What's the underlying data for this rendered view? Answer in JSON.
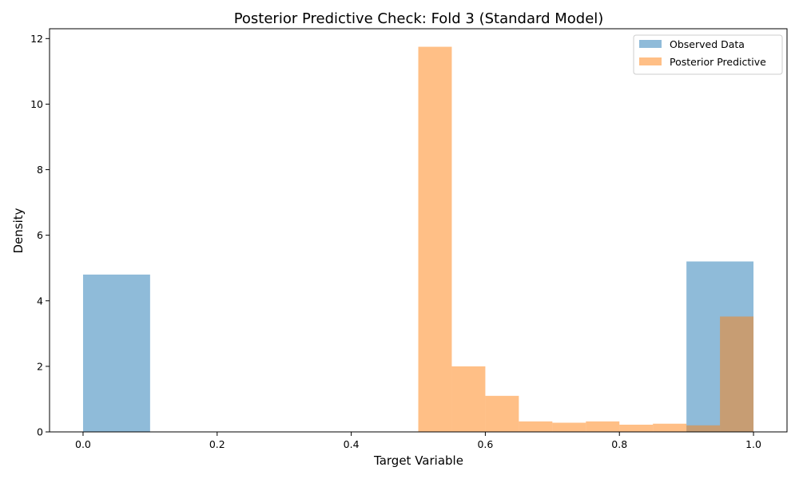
{
  "chart_data": {
    "type": "histogram",
    "title": "Posterior Predictive Check: Fold 3 (Standard Model)",
    "xlabel": "Target Variable",
    "ylabel": "Density",
    "xlim": [
      -0.05,
      1.05
    ],
    "ylim": [
      0,
      12.3
    ],
    "xticks": [
      0.0,
      0.2,
      0.4,
      0.6,
      0.8,
      1.0
    ],
    "xtick_labels": [
      "0.0",
      "0.2",
      "0.4",
      "0.6",
      "0.8",
      "1.0"
    ],
    "yticks": [
      0,
      2,
      4,
      6,
      8,
      10,
      12
    ],
    "ytick_labels": [
      "0",
      "2",
      "4",
      "6",
      "8",
      "10",
      "12"
    ],
    "grid": false,
    "legend_position": "top-right",
    "series": [
      {
        "name": "Observed Data",
        "color": "#1f77b4",
        "opacity": 0.5,
        "bins": [
          {
            "x0": 0.0,
            "x1": 0.1,
            "density": 4.8
          },
          {
            "x0": 0.9,
            "x1": 1.0,
            "density": 5.2
          }
        ]
      },
      {
        "name": "Posterior Predictive",
        "color": "#ff7f0e",
        "opacity": 0.5,
        "bins": [
          {
            "x0": 0.5,
            "x1": 0.55,
            "density": 11.75
          },
          {
            "x0": 0.55,
            "x1": 0.6,
            "density": 2.0
          },
          {
            "x0": 0.6,
            "x1": 0.65,
            "density": 1.1
          },
          {
            "x0": 0.65,
            "x1": 0.7,
            "density": 0.32
          },
          {
            "x0": 0.7,
            "x1": 0.75,
            "density": 0.28
          },
          {
            "x0": 0.75,
            "x1": 0.8,
            "density": 0.32
          },
          {
            "x0": 0.8,
            "x1": 0.85,
            "density": 0.22
          },
          {
            "x0": 0.85,
            "x1": 0.9,
            "density": 0.25
          },
          {
            "x0": 0.9,
            "x1": 0.95,
            "density": 0.2
          },
          {
            "x0": 0.95,
            "x1": 1.0,
            "density": 3.52
          }
        ]
      }
    ]
  }
}
